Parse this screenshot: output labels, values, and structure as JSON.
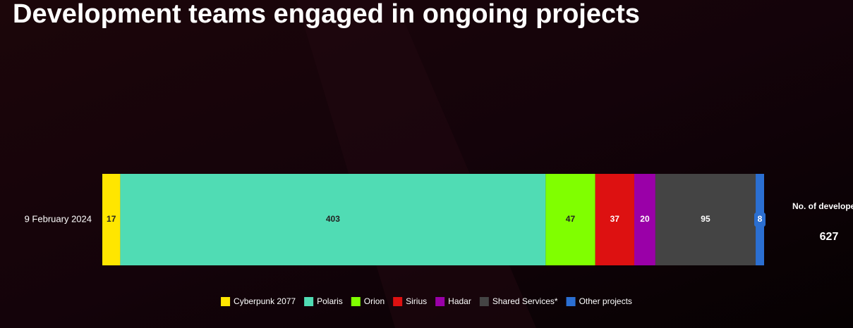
{
  "chart_data": {
    "type": "stacked-bar",
    "title": "Development teams engaged in ongoing projects",
    "categories": [
      "9 February 2024"
    ],
    "series": [
      {
        "name": "Cyberpunk 2077",
        "color": "#ffe600",
        "values": [
          17
        ]
      },
      {
        "name": "Polaris",
        "color": "#50dcb4",
        "values": [
          403
        ]
      },
      {
        "name": "Orion",
        "color": "#80ff00",
        "values": [
          47
        ]
      },
      {
        "name": "Sirius",
        "color": "#dd1111",
        "values": [
          37
        ]
      },
      {
        "name": "Hadar",
        "color": "#9a00a8",
        "values": [
          20
        ]
      },
      {
        "name": "Shared Services*",
        "color": "#444444",
        "values": [
          95
        ]
      },
      {
        "name": "Other projects",
        "color": "#2b6fd2",
        "values": [
          8
        ]
      }
    ],
    "total_label": "No. of developer",
    "total": 627,
    "legend": "bottom"
  }
}
